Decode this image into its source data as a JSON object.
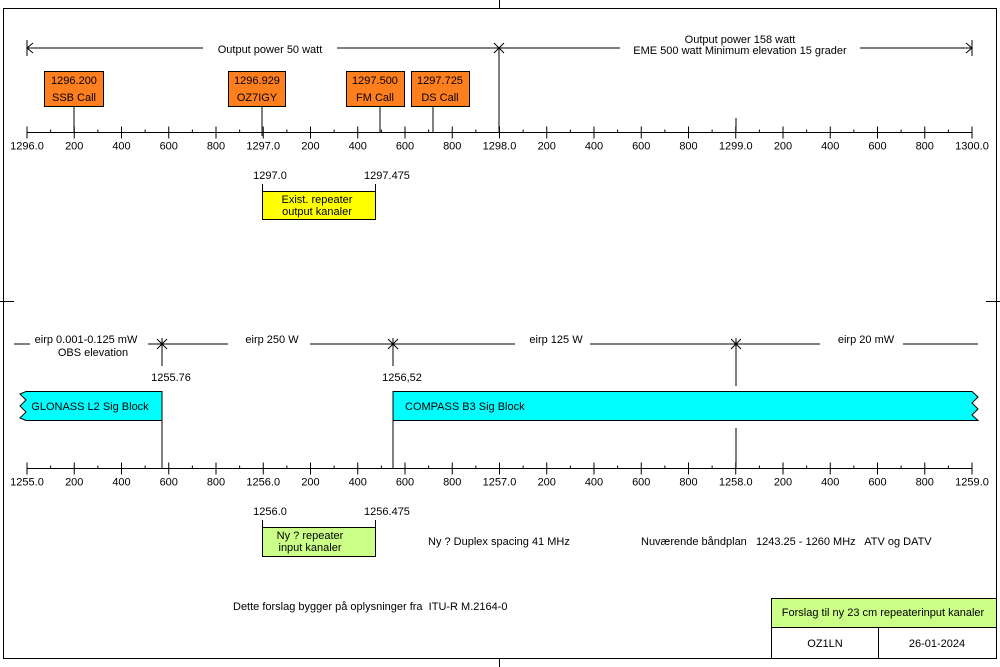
{
  "top_band": {
    "span_left": "Output power 50 watt",
    "span_right_line1": "Output power 158 watt",
    "span_right_line2": "EME 500 watt  Minimum elevation 15 grader",
    "ticks": [
      "1296.0",
      "200",
      "400",
      "600",
      "800",
      "1297.0",
      "200",
      "400",
      "600",
      "800",
      "1298.0",
      "200",
      "400",
      "600",
      "800",
      "1299.0",
      "200",
      "400",
      "600",
      "800",
      "1300.0"
    ],
    "calls": [
      {
        "freq": "1296.200",
        "label": "SSB Call"
      },
      {
        "freq": "1296.929",
        "label": "OZ7IGY"
      },
      {
        "freq": "1297.500",
        "label": "FM Call"
      },
      {
        "freq": "1297.725",
        "label": "DS Call"
      }
    ],
    "repeater_start": "1297.0",
    "repeater_end": "1297.475",
    "repeater_line1": "Exist. repeater",
    "repeater_line2": "output kanaler"
  },
  "bottom_band": {
    "eirp_1_line1": "eirp 0.001-0.125 mW",
    "eirp_1_line2": "OBS elevation",
    "eirp_2": "eirp 250 W",
    "eirp_3": "eirp 125 W",
    "eirp_4": "eirp 20 mW",
    "marker_1": "1255.76",
    "marker_2": "1256,52",
    "glonass": "GLONASS L2 Sig Block",
    "compass": "COMPASS B3 Sig Block",
    "ticks": [
      "1255.0",
      "200",
      "400",
      "600",
      "800",
      "1256.0",
      "200",
      "400",
      "600",
      "800",
      "1257.0",
      "200",
      "400",
      "600",
      "800",
      "1258.0",
      "200",
      "400",
      "600",
      "800",
      "1259.0"
    ],
    "repeater_start": "1256.0",
    "repeater_end": "1256.475",
    "repeater_line1": "Ny ? repeater",
    "repeater_line2": "input kanaler",
    "duplex": "Ny ? Duplex spacing 41 MHz",
    "bandplan": "Nuværende båndplan   1243.25 - 1260 MHz   ATV og DATV"
  },
  "footer": {
    "note": "Dette forslag bygger på oplysninger fra  ITU-R M.2164-0",
    "title": "Forslag til ny 23 cm repeaterinput kanaler",
    "author": "OZ1LN",
    "date": "26-01-2024"
  },
  "colors": {
    "call_box": "#ff7f1f",
    "existing_repeater": "#ffff00",
    "new_repeater": "#ccff88",
    "sig_block": "#00ffff",
    "title_block": "#ccff88"
  }
}
